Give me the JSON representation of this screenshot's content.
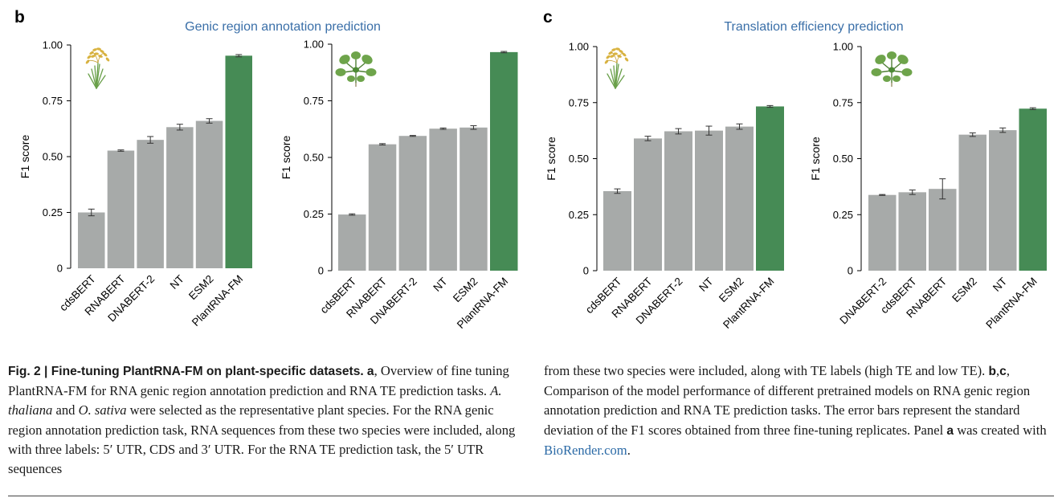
{
  "colors": {
    "bar_default": "#a7aaa9",
    "bar_highlight": "#468b55",
    "title": "#3a6fa8",
    "link": "#2b6aa6"
  },
  "panels": [
    {
      "letter": "b",
      "title": "Genic region annotation prediction"
    },
    {
      "letter": "c",
      "title": "Translation efficiency prediction"
    }
  ],
  "chart_data": [
    {
      "type": "bar",
      "panel": "b",
      "icon": "rice-plant-icon",
      "title": "",
      "xlabel": "",
      "ylabel": "F1 score",
      "ylim": [
        0,
        1
      ],
      "yticks": [
        0,
        0.25,
        0.5,
        0.75,
        1.0
      ],
      "yticklabels": [
        "0",
        "0.25",
        "0.50",
        "0.75",
        "1.00"
      ],
      "categories": [
        "cdsBERT",
        "RNABERT",
        "DNABERT-2",
        "NT",
        "ESM2",
        "PlantRNA-FM"
      ],
      "values": [
        0.25,
        0.527,
        0.575,
        0.632,
        0.66,
        0.952
      ],
      "errors": [
        0.015,
        0.003,
        0.015,
        0.013,
        0.01,
        0.005
      ],
      "highlight": "PlantRNA-FM"
    },
    {
      "type": "bar",
      "panel": "b",
      "icon": "arabidopsis-rosette-icon",
      "title": "",
      "xlabel": "",
      "ylabel": "F1 score",
      "ylim": [
        0,
        1
      ],
      "yticks": [
        0,
        0.25,
        0.5,
        0.75,
        1.0
      ],
      "yticklabels": [
        "0",
        "0.25",
        "0.50",
        "0.75",
        "1.00"
      ],
      "categories": [
        "cdsBERT",
        "RNABERT",
        "DNABERT-2",
        "NT",
        "ESM2",
        "PlantRNA-FM"
      ],
      "values": [
        0.248,
        0.558,
        0.595,
        0.627,
        0.632,
        0.965
      ],
      "errors": [
        0.003,
        0.003,
        0.002,
        0.003,
        0.008,
        0.003
      ],
      "highlight": "PlantRNA-FM"
    },
    {
      "type": "bar",
      "panel": "c",
      "icon": "rice-plant-icon",
      "title": "",
      "xlabel": "",
      "ylabel": "F1 score",
      "ylim": [
        0,
        1
      ],
      "yticks": [
        0,
        0.25,
        0.5,
        0.75,
        1.0
      ],
      "yticklabels": [
        "0",
        "0.25",
        "0.50",
        "0.75",
        "1.00"
      ],
      "categories": [
        "cdsBERT",
        "RNABERT",
        "DNABERT-2",
        "NT",
        "ESM2",
        "PlantRNA-FM"
      ],
      "values": [
        0.355,
        0.59,
        0.622,
        0.625,
        0.643,
        0.733
      ],
      "errors": [
        0.01,
        0.01,
        0.012,
        0.02,
        0.012,
        0.004
      ],
      "highlight": "PlantRNA-FM"
    },
    {
      "type": "bar",
      "panel": "c",
      "icon": "arabidopsis-rosette-icon",
      "title": "",
      "xlabel": "",
      "ylabel": "F1 score",
      "ylim": [
        0,
        1
      ],
      "yticks": [
        0,
        0.25,
        0.5,
        0.75,
        1.0
      ],
      "yticklabels": [
        "0",
        "0.25",
        "0.50",
        "0.75",
        "1.00"
      ],
      "categories": [
        "DNABERT-2",
        "cdsBERT",
        "RNABERT",
        "ESM2",
        "NT",
        "PlantRNA-FM"
      ],
      "values": [
        0.338,
        0.35,
        0.365,
        0.607,
        0.627,
        0.723
      ],
      "errors": [
        0.002,
        0.01,
        0.045,
        0.008,
        0.01,
        0.004
      ],
      "highlight": "PlantRNA-FM"
    }
  ],
  "caption": {
    "fig_label": "Fig. 2 | Fine-tuning PlantRNA-FM on plant-specific datasets.",
    "a_label": "a",
    "p1": ", Overview of fine tuning PlantRNA-FM for RNA genic region annotation prediction and RNA TE prediction tasks. ",
    "species1": "A. thaliana",
    "and": " and ",
    "species2": "O. sativa",
    "p2": " were selected as the representative plant species. For the RNA genic region annotation prediction task, RNA sequences from these two species were included, along with three labels: 5′ UTR, CDS and 3′ UTR. For the RNA TE prediction task, the 5′ UTR sequences",
    "p3": "from these two species were included, along with TE labels (high TE and low TE). ",
    "bc_label": "b",
    "comma": ",",
    "c_label": "c",
    "p4": ", Comparison of the model performance of different pretrained models on RNA genic region annotation prediction and RNA TE prediction tasks. The error bars represent the standard deviation of the F1 scores obtained from three fine-tuning replicates. Panel ",
    "a_label2": "a",
    "p5": " was created with ",
    "link": "BioRender.com",
    "period": "."
  }
}
